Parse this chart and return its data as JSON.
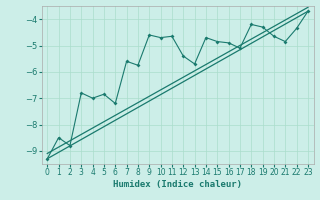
{
  "title": "",
  "xlabel": "Humidex (Indice chaleur)",
  "bg_color": "#cceee8",
  "line_color": "#1a7a6e",
  "grid_color": "#aaddcc",
  "xlim": [
    -0.5,
    23.5
  ],
  "ylim": [
    -9.5,
    -3.5
  ],
  "x_ticks": [
    0,
    1,
    2,
    3,
    4,
    5,
    6,
    7,
    8,
    9,
    10,
    11,
    12,
    13,
    14,
    15,
    16,
    17,
    18,
    19,
    20,
    21,
    22,
    23
  ],
  "y_ticks": [
    -9,
    -8,
    -7,
    -6,
    -5,
    -4
  ],
  "scatter_x": [
    0,
    1,
    2,
    3,
    4,
    5,
    6,
    7,
    8,
    9,
    10,
    11,
    12,
    13,
    14,
    15,
    16,
    17,
    18,
    19,
    20,
    21,
    22,
    23
  ],
  "scatter_y": [
    -9.3,
    -8.5,
    -8.8,
    -6.8,
    -7.0,
    -6.85,
    -7.2,
    -5.6,
    -5.75,
    -4.6,
    -4.7,
    -4.65,
    -5.4,
    -5.7,
    -4.7,
    -4.85,
    -4.9,
    -5.1,
    -4.2,
    -4.3,
    -4.65,
    -4.85,
    -4.35,
    -3.7
  ],
  "reg_x0": 0,
  "reg_y0": -9.3,
  "reg_x1": 23,
  "reg_y1": -3.7,
  "reg2_y0": -9.1,
  "reg2_y1": -3.55
}
